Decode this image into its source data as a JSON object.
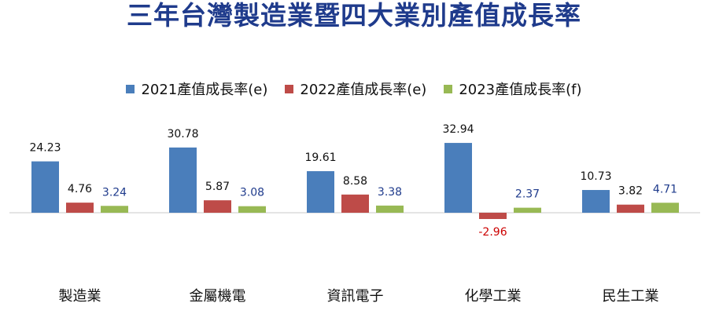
{
  "chart_data": {
    "type": "bar",
    "title": "三年台灣製造業暨四大業別產值成長率",
    "xlabel": "",
    "ylabel": "",
    "categories": [
      "製造業",
      "金屬機電",
      "資訊電子",
      "化學工業",
      "民生工業"
    ],
    "series": [
      {
        "name": "2021產值成長率(e)",
        "color": "#4a7ebb",
        "label_color": "#111111",
        "values": [
          24.23,
          30.78,
          19.61,
          32.94,
          10.73
        ],
        "labels": [
          "24.23",
          "30.78",
          "19.61",
          "32.94",
          "10.73"
        ]
      },
      {
        "name": "2022產值成長率(e)",
        "color": "#be4b48",
        "label_color": "#111111",
        "values": [
          4.76,
          5.87,
          8.58,
          -2.96,
          3.82
        ],
        "labels": [
          "4.76",
          "5.87",
          "8.58",
          "-2.96",
          "3.82"
        ]
      },
      {
        "name": "2023產值成長率(f)",
        "color": "#98b954",
        "label_color": "#1f3b8c",
        "values": [
          3.24,
          3.08,
          3.38,
          2.37,
          4.71
        ],
        "labels": [
          "3.24",
          "3.08",
          "3.38",
          "2.37",
          "4.71"
        ]
      }
    ],
    "negative_label_color": "#cc0000",
    "legend_position": "top",
    "grid": false
  }
}
